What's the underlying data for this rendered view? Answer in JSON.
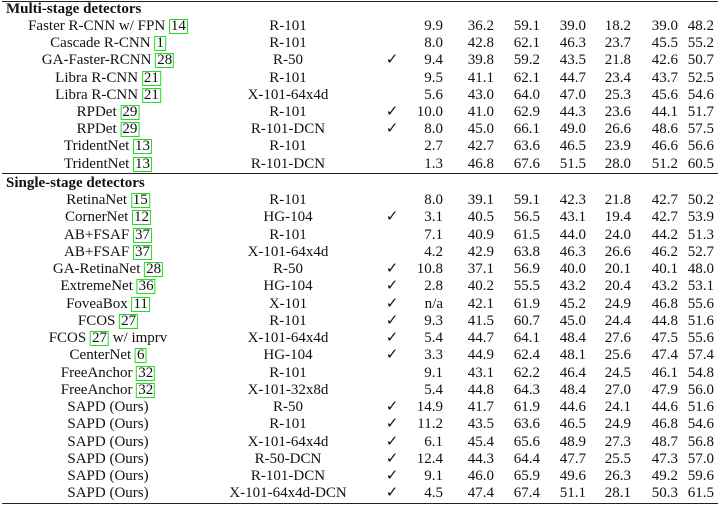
{
  "sections": [
    {
      "title": "Multi-stage detectors",
      "rows": [
        {
          "name": "Faster R-CNN w/ FPN",
          "ref": "14",
          "backbone": "R-101",
          "values": [
            "9.9",
            "36.2",
            "59.1",
            "39.0",
            "18.2",
            "39.0",
            "48.2"
          ]
        },
        {
          "name": "Cascade R-CNN",
          "ref": "1",
          "backbone": "R-101",
          "values": [
            "8.0",
            "42.8",
            "62.1",
            "46.3",
            "23.7",
            "45.5",
            "55.2"
          ]
        },
        {
          "name": "GA-Faster-RCNN",
          "ref": "28",
          "backbone": "R-50",
          "check": "✓",
          "values": [
            "9.4",
            "39.8",
            "59.2",
            "43.5",
            "21.8",
            "42.6",
            "50.7"
          ]
        },
        {
          "name": "Libra R-CNN",
          "ref": "21",
          "backbone": "R-101",
          "values": [
            "9.5",
            "41.1",
            "62.1",
            "44.7",
            "23.4",
            "43.7",
            "52.5"
          ]
        },
        {
          "name": "Libra R-CNN",
          "ref": "21",
          "backbone": "X-101-64x4d",
          "values": [
            "5.6",
            "43.0",
            "64.0",
            "47.0",
            "25.3",
            "45.6",
            "54.6"
          ]
        },
        {
          "name": "RPDet",
          "ref": "29",
          "backbone": "R-101",
          "check": "✓",
          "values": [
            "10.0",
            "41.0",
            "62.9",
            "44.3",
            "23.6",
            "44.1",
            "51.7"
          ]
        },
        {
          "name": "RPDet",
          "ref": "29",
          "backbone": "R-101-DCN",
          "check": "✓",
          "values": [
            "8.0",
            "45.0",
            "66.1",
            "49.0",
            "26.6",
            "48.6",
            "57.5"
          ]
        },
        {
          "name": "TridentNet",
          "ref": "13",
          "backbone": "R-101",
          "values": [
            "2.7",
            "42.7",
            "63.6",
            "46.5",
            "23.9",
            "46.6",
            "56.6"
          ]
        },
        {
          "name": "TridentNet",
          "ref": "13",
          "backbone": "R-101-DCN",
          "values": [
            "1.3",
            "46.8",
            "67.6",
            "51.5",
            "28.0",
            "51.2",
            "60.5"
          ]
        }
      ]
    },
    {
      "title": "Single-stage detectors",
      "rows": [
        {
          "name": "RetinaNet",
          "ref": "15",
          "backbone": "R-101",
          "values": [
            "8.0",
            "39.1",
            "59.1",
            "42.3",
            "21.8",
            "42.7",
            "50.2"
          ]
        },
        {
          "name": "CornerNet",
          "ref": "12",
          "backbone": "HG-104",
          "check": "✓",
          "values": [
            "3.1",
            "40.5",
            "56.5",
            "43.1",
            "19.4",
            "42.7",
            "53.9"
          ]
        },
        {
          "name": "AB+FSAF",
          "ref": "37",
          "backbone": "R-101",
          "values": [
            "7.1",
            "40.9",
            "61.5",
            "44.0",
            "24.0",
            "44.2",
            "51.3"
          ]
        },
        {
          "name": "AB+FSAF",
          "ref": "37",
          "backbone": "X-101-64x4d",
          "values": [
            "4.2",
            "42.9",
            "63.8",
            "46.3",
            "26.6",
            "46.2",
            "52.7"
          ]
        },
        {
          "name": "GA-RetinaNet",
          "ref": "28",
          "backbone": "R-50",
          "check": "✓",
          "values": [
            "10.8",
            "37.1",
            "56.9",
            "40.0",
            "20.1",
            "40.1",
            "48.0"
          ]
        },
        {
          "name": "ExtremeNet",
          "ref": "36",
          "backbone": "HG-104",
          "check": "✓",
          "values": [
            "2.8",
            "40.2",
            "55.5",
            "43.2",
            "20.4",
            "43.2",
            "53.1"
          ]
        },
        {
          "name": "FoveaBox",
          "ref": "11",
          "backbone": "X-101",
          "check": "✓",
          "values": [
            "n/a",
            "42.1",
            "61.9",
            "45.2",
            "24.9",
            "46.8",
            "55.6"
          ]
        },
        {
          "name": "FCOS",
          "ref": "27",
          "backbone": "R-101",
          "check": "✓",
          "values": [
            "9.3",
            "41.5",
            "60.7",
            "45.0",
            "24.4",
            "44.8",
            "51.6"
          ]
        },
        {
          "name": "FCOS",
          "ref": "27",
          "suffix": "w/ imprv",
          "backbone": "X-101-64x4d",
          "check": "✓",
          "values": [
            "5.4",
            "44.7",
            "64.1",
            "48.4",
            "27.6",
            "47.5",
            "55.6"
          ]
        },
        {
          "name": "CenterNet",
          "ref": "6",
          "backbone": "HG-104",
          "check": "✓",
          "values": [
            "3.3",
            "44.9",
            "62.4",
            "48.1",
            "25.6",
            "47.4",
            "57.4"
          ]
        },
        {
          "name": "FreeAnchor",
          "ref": "32",
          "backbone": "R-101",
          "values": [
            "9.1",
            "43.1",
            "62.2",
            "46.4",
            "24.5",
            "46.1",
            "54.8"
          ]
        },
        {
          "name": "FreeAnchor",
          "ref": "32",
          "backbone": "X-101-32x8d",
          "values": [
            "5.4",
            "44.8",
            "64.3",
            "48.4",
            "27.0",
            "47.9",
            "56.0"
          ]
        },
        {
          "name": "SAPD (Ours)",
          "backbone": "R-50",
          "check": "✓",
          "values": [
            "14.9",
            "41.7",
            "61.9",
            "44.6",
            "24.1",
            "44.6",
            "51.6"
          ]
        },
        {
          "name": "SAPD (Ours)",
          "backbone": "R-101",
          "check": "✓",
          "values": [
            "11.2",
            "43.5",
            "63.6",
            "46.5",
            "24.9",
            "46.8",
            "54.6"
          ]
        },
        {
          "name": "SAPD (Ours)",
          "backbone": "X-101-64x4d",
          "check": "✓",
          "values": [
            "6.1",
            "45.4",
            "65.6",
            "48.9",
            "27.3",
            "48.7",
            "56.8"
          ]
        },
        {
          "name": "SAPD (Ours)",
          "backbone": "R-50-DCN",
          "check": "✓",
          "values": [
            "12.4",
            "44.3",
            "64.4",
            "47.7",
            "25.5",
            "47.3",
            "57.0"
          ]
        },
        {
          "name": "SAPD (Ours)",
          "backbone": "R-101-DCN",
          "check": "✓",
          "values": [
            "9.1",
            "46.0",
            "65.9",
            "49.6",
            "26.3",
            "49.2",
            "59.6"
          ]
        },
        {
          "name": "SAPD (Ours)",
          "backbone": "X-101-64x4d-DCN",
          "check": "✓",
          "values": [
            "4.5",
            "47.4",
            "67.4",
            "51.1",
            "28.1",
            "50.3",
            "61.5"
          ]
        }
      ]
    }
  ]
}
